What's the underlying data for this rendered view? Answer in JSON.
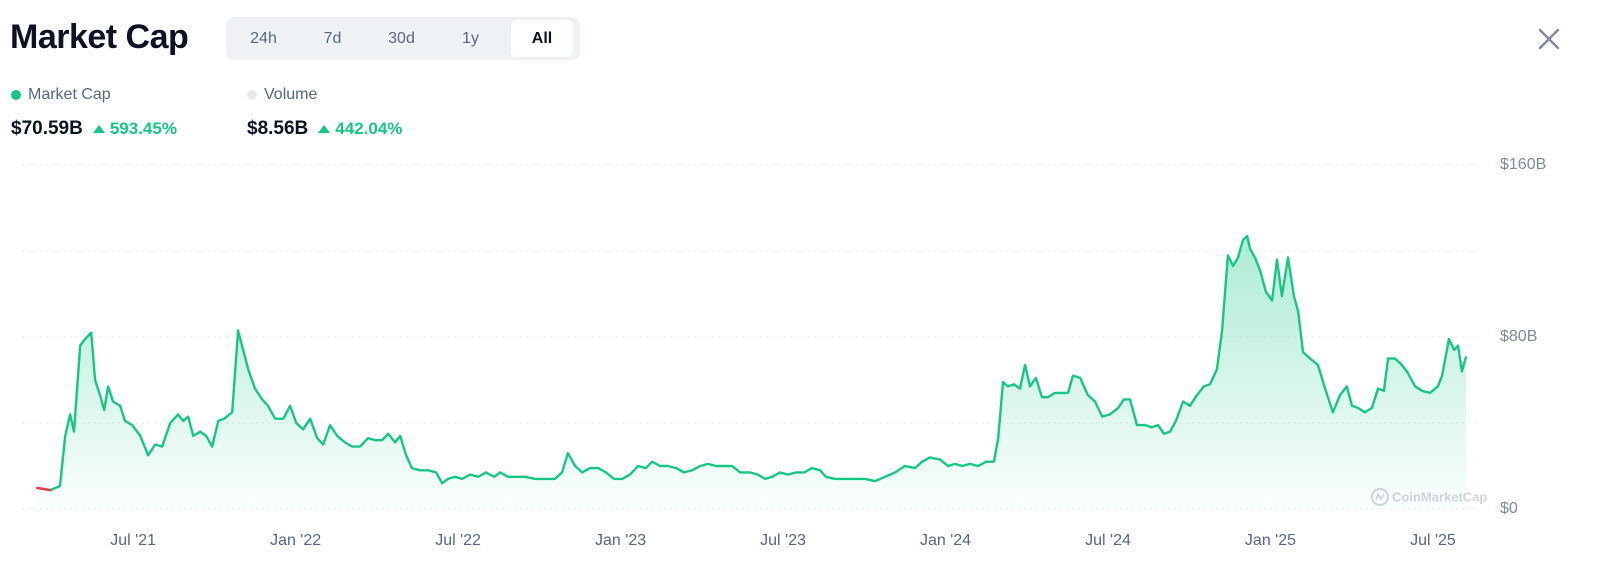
{
  "header": {
    "title": "Market Cap",
    "tabs": [
      "24h",
      "7d",
      "30d",
      "1y",
      "All"
    ],
    "active_tab_index": 4
  },
  "stats": [
    {
      "name": "Market Cap",
      "value": "$70.59B",
      "change": "593.45%",
      "color": "#16c784"
    },
    {
      "name": "Volume",
      "value": "$8.56B",
      "change": "442.04%",
      "color": "#e6e9ee"
    }
  ],
  "watermark": "CoinMarketCap",
  "chart_data": {
    "type": "area",
    "x": [
      2021.205,
      2021.245,
      2021.275,
      2021.291,
      2021.306,
      2021.318,
      2021.337,
      2021.352,
      2021.371,
      2021.383,
      2021.398,
      2021.411,
      2021.423,
      2021.438,
      2021.46,
      2021.475,
      2021.497,
      2021.522,
      2021.546,
      2021.568,
      2021.589,
      2021.614,
      2021.638,
      2021.654,
      2021.669,
      2021.685,
      2021.706,
      2021.725,
      2021.743,
      2021.762,
      2021.78,
      2021.805,
      2021.823,
      2021.835,
      2021.854,
      2021.875,
      2021.897,
      2021.915,
      2021.937,
      2021.962,
      2021.983,
      2022.002,
      2022.023,
      2022.045,
      2022.066,
      2022.085,
      2022.106,
      2022.128,
      2022.152,
      2022.174,
      2022.198,
      2022.223,
      2022.245,
      2022.266,
      2022.285,
      2022.306,
      2022.322,
      2022.34,
      2022.358,
      2022.383,
      2022.408,
      2022.432,
      2022.451,
      2022.469,
      2022.491,
      2022.512,
      2022.537,
      2022.562,
      2022.586,
      2022.611,
      2022.629,
      2022.654,
      2022.678,
      2022.706,
      2022.737,
      2022.768,
      2022.798,
      2022.82,
      2022.838,
      2022.86,
      2022.882,
      2022.906,
      2022.931,
      2022.955,
      2022.98,
      2023.005,
      2023.029,
      2023.054,
      2023.078,
      2023.097,
      2023.122,
      2023.146,
      2023.171,
      2023.195,
      2023.22,
      2023.245,
      2023.269,
      2023.294,
      2023.318,
      2023.343,
      2023.368,
      2023.398,
      2023.423,
      2023.445,
      2023.466,
      2023.491,
      2023.515,
      2023.54,
      2023.565,
      2023.589,
      2023.614,
      2023.632,
      2023.66,
      2023.691,
      2023.722,
      2023.752,
      2023.783,
      2023.814,
      2023.845,
      2023.875,
      2023.906,
      2023.928,
      2023.952,
      2023.983,
      2024.008,
      2024.029,
      2024.051,
      2024.075,
      2024.1,
      2024.125,
      2024.149,
      2024.162,
      2024.177,
      2024.192,
      2024.211,
      2024.229,
      2024.245,
      2024.26,
      2024.278,
      2024.297,
      2024.315,
      2024.337,
      2024.352,
      2024.377,
      2024.392,
      2024.414,
      2024.438,
      2024.46,
      2024.482,
      2024.506,
      2024.531,
      2024.549,
      2024.568,
      2024.589,
      2024.614,
      2024.635,
      2024.654,
      2024.672,
      2024.691,
      2024.709,
      2024.731,
      2024.752,
      2024.774,
      2024.795,
      2024.814,
      2024.835,
      2024.851,
      2024.869,
      2024.885,
      2024.9,
      2024.915,
      2024.928,
      2024.937,
      2024.952,
      2024.968,
      2024.986,
      2025.005,
      2025.02,
      2025.035,
      2025.054,
      2025.072,
      2025.085,
      2025.1,
      2025.122,
      2025.146,
      2025.168,
      2025.192,
      2025.214,
      2025.235,
      2025.251,
      2025.269,
      2025.291,
      2025.312,
      2025.331,
      2025.349,
      2025.362,
      2025.383,
      2025.398,
      2025.42,
      2025.445,
      2025.466,
      2025.491,
      2025.515,
      2025.528,
      2025.549,
      2025.565,
      2025.577,
      2025.589,
      2025.602
    ],
    "series": [
      {
        "color": "#16c784",
        "color_below_start": "#ea3943",
        "values": [
          9.8,
          8.8,
          10.7,
          34,
          44,
          36,
          76,
          79,
          82,
          60,
          53,
          46,
          57,
          50,
          48,
          41,
          39,
          34,
          25,
          30,
          29,
          40,
          44,
          41,
          43,
          34,
          36,
          34,
          29,
          41,
          42,
          45,
          83,
          76,
          65,
          56,
          51,
          48,
          42,
          42,
          48,
          40,
          37,
          42,
          33,
          30,
          39,
          34,
          31,
          29,
          29,
          33,
          32,
          32,
          35,
          31,
          34,
          25,
          19,
          18,
          18,
          17,
          12,
          14,
          15,
          14,
          16,
          15,
          17,
          15,
          17,
          15,
          15,
          15,
          14,
          14,
          14,
          17,
          26,
          20,
          17,
          19,
          19,
          17,
          14,
          14,
          16,
          20,
          19,
          22,
          20,
          20,
          19,
          17,
          18,
          20,
          21,
          20,
          20,
          20,
          17,
          17,
          16,
          14,
          15,
          17,
          16,
          17,
          17,
          19,
          18,
          15,
          14,
          14,
          14,
          14,
          13,
          15,
          17,
          20,
          19,
          22,
          24,
          23,
          20,
          21,
          20,
          21,
          20,
          22,
          22,
          33,
          59,
          57,
          58,
          56,
          67,
          57,
          61,
          52,
          52,
          54,
          54,
          54,
          62,
          61,
          53,
          50,
          43,
          44,
          47,
          51,
          51,
          39,
          39,
          38,
          39,
          35,
          36,
          41,
          50,
          48,
          53,
          57,
          58,
          65,
          83,
          118,
          113,
          117,
          125,
          127,
          121,
          117,
          111,
          101,
          97,
          116,
          99,
          117,
          99,
          92,
          73,
          70,
          67,
          56,
          45,
          53,
          57,
          48,
          47,
          45,
          47,
          56,
          55,
          70,
          70,
          68,
          64,
          57,
          55,
          54,
          57,
          62,
          79,
          74,
          76,
          64,
          71
        ]
      }
    ],
    "xlim": [
      2021.158,
      2025.614
    ],
    "xticks": [
      {
        "value": 2021.5,
        "label": "Jul '21"
      },
      {
        "value": 2022.0,
        "label": "Jan '22"
      },
      {
        "value": 2022.5,
        "label": "Jul '22"
      },
      {
        "value": 2023.0,
        "label": "Jan '23"
      },
      {
        "value": 2023.5,
        "label": "Jul '23"
      },
      {
        "value": 2024.0,
        "label": "Jan '24"
      },
      {
        "value": 2024.5,
        "label": "Jul '24"
      },
      {
        "value": 2025.0,
        "label": "Jan '25"
      },
      {
        "value": 2025.5,
        "label": "Jul '25"
      }
    ],
    "ylim": [
      0,
      160
    ],
    "yticks": [
      {
        "value": 0,
        "label": "$0"
      },
      {
        "value": 80,
        "label": "$80B"
      },
      {
        "value": 160,
        "label": "$160B"
      }
    ],
    "minor_yticks": [
      40,
      120
    ],
    "grid": true
  }
}
